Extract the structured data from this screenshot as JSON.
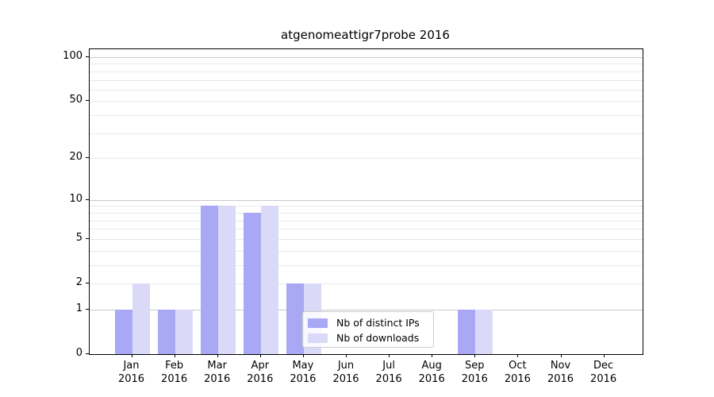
{
  "chart_data": {
    "type": "bar",
    "title": "atgenomeattigr7probe 2016",
    "year_label": "2016",
    "categories": [
      "Jan",
      "Feb",
      "Mar",
      "Apr",
      "May",
      "Jun",
      "Jul",
      "Aug",
      "Sep",
      "Oct",
      "Nov",
      "Dec"
    ],
    "series": [
      {
        "name": "Nb of distinct IPs",
        "color": "#a8a8f5",
        "values": [
          1,
          1,
          9,
          8,
          2,
          0,
          0,
          0,
          1,
          0,
          0,
          0
        ]
      },
      {
        "name": "Nb of downloads",
        "color": "#dadaf8",
        "values": [
          2,
          1,
          9,
          9,
          2,
          0,
          0,
          0,
          1,
          0,
          0,
          0
        ]
      }
    ],
    "y_ticks": [
      100,
      50,
      20,
      10,
      5,
      2,
      1,
      0
    ],
    "scale": "log10(1+y)",
    "ylim": [
      0,
      113
    ],
    "grid": "horizontal",
    "minor_grid_values": [
      2,
      3,
      4,
      5,
      6,
      7,
      8,
      9,
      20,
      30,
      40,
      50,
      60,
      70,
      80,
      90
    ],
    "major_grid_values": [
      1,
      10,
      100
    ],
    "legend_position": "lower-center inside plot",
    "colors": {
      "bar_distinct_ips": "#a8a8f5",
      "bar_downloads": "#dadaf8",
      "grid_minor": "#e9e9e9",
      "grid_major": "#c9c9c9",
      "axis": "#000000",
      "legend_border": "#cccccc"
    }
  }
}
